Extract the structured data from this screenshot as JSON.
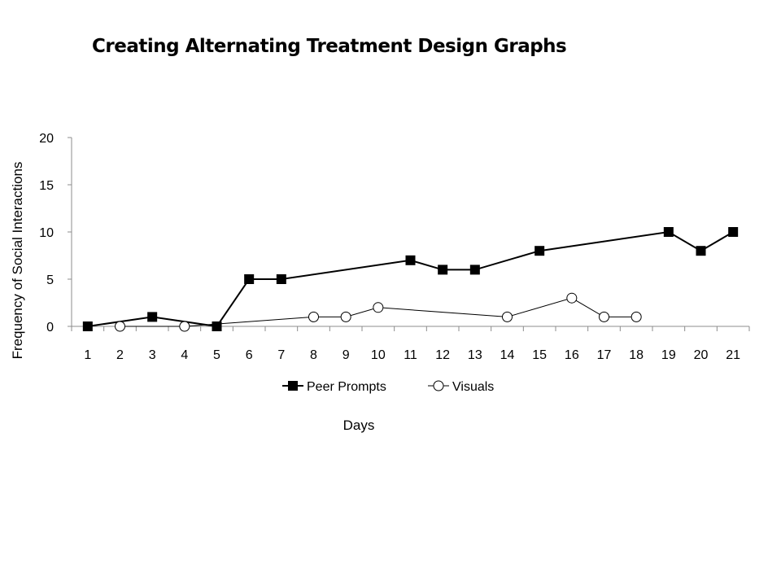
{
  "page": {
    "title": "Creating Alternating Treatment Design Graphs"
  },
  "chart_data": {
    "type": "line",
    "categories": [
      "1",
      "2",
      "3",
      "4",
      "5",
      "6",
      "7",
      "8",
      "9",
      "10",
      "11",
      "12",
      "13",
      "14",
      "15",
      "16",
      "17",
      "18",
      "19",
      "20",
      "21"
    ],
    "xlabel": "Days",
    "ylabel": "Frequency of Social Interactions",
    "ylim": [
      0,
      20
    ],
    "yticks": [
      0,
      5,
      10,
      15,
      20
    ],
    "grid": false,
    "legend_position": "bottom",
    "series": [
      {
        "name": "Peer Prompts",
        "marker": "filled-square",
        "color": "#000000",
        "points": [
          {
            "x": "1",
            "y": 0
          },
          {
            "x": "3",
            "y": 1
          },
          {
            "x": "5",
            "y": 0
          },
          {
            "x": "6",
            "y": 5
          },
          {
            "x": "7",
            "y": 5
          },
          {
            "x": "11",
            "y": 7
          },
          {
            "x": "12",
            "y": 6
          },
          {
            "x": "13",
            "y": 6
          },
          {
            "x": "15",
            "y": 8
          },
          {
            "x": "19",
            "y": 10
          },
          {
            "x": "20",
            "y": 8
          },
          {
            "x": "21",
            "y": 10
          }
        ]
      },
      {
        "name": "Visuals",
        "marker": "open-circle",
        "color": "#000000",
        "points": [
          {
            "x": "2",
            "y": 0
          },
          {
            "x": "4",
            "y": 0
          },
          {
            "x": "8",
            "y": 1
          },
          {
            "x": "9",
            "y": 1
          },
          {
            "x": "10",
            "y": 2
          },
          {
            "x": "14",
            "y": 1
          },
          {
            "x": "16",
            "y": 3
          },
          {
            "x": "17",
            "y": 1
          },
          {
            "x": "18",
            "y": 1
          }
        ]
      }
    ]
  }
}
